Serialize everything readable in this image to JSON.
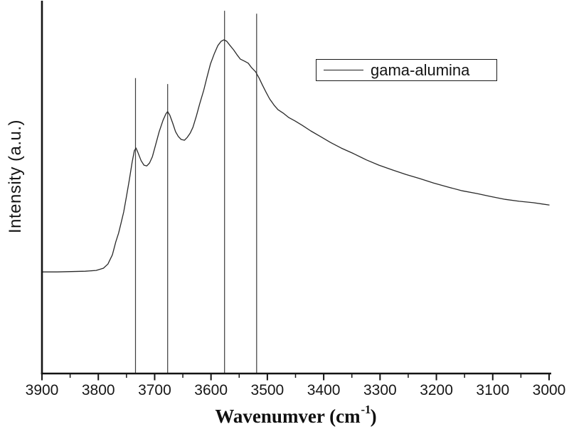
{
  "figure": {
    "background": "#ffffff",
    "ink_color": "#141414",
    "marker_line_color": "#3c3c3c"
  },
  "chart_data": {
    "type": "line",
    "title": "",
    "xlabel": {
      "prefix": "Wavenumver (cm",
      "superscript": "-1",
      "suffix": ")"
    },
    "ylabel": "Intensity (a.u.)",
    "legend": {
      "position": "upper right",
      "entries": [
        "gama-alumina"
      ]
    },
    "x_axis": {
      "left_value": 3900,
      "right_value": 3000,
      "direction": "reversed",
      "major_ticks": [
        3900,
        3800,
        3700,
        3600,
        3500,
        3400,
        3300,
        3200,
        3100,
        3000
      ],
      "major_tick_labels": [
        "3900",
        "3800",
        "3700",
        "3600",
        "3500",
        "3400",
        "3300",
        "3200",
        "3100",
        "3000"
      ],
      "minor_ticks": [
        3850,
        3750,
        3650,
        3550,
        3450,
        3350,
        3250,
        3150,
        3050
      ],
      "grid": false
    },
    "y_axis": {
      "range": [
        0,
        1
      ],
      "ticks": [],
      "tick_labels": [],
      "unit": "a.u.",
      "grid": false
    },
    "peak_markers": [
      {
        "wavenumber": 3734,
        "top_intensity": 0.794
      },
      {
        "wavenumber": 3677,
        "top_intensity": 0.778
      },
      {
        "wavenumber": 3576,
        "top_intensity": 0.975
      },
      {
        "wavenumber": 3519,
        "top_intensity": 0.967
      }
    ],
    "series": [
      {
        "name": "gama-alumina",
        "color": "#2a2a2a",
        "points": [
          [
            3900,
            0.273
          ],
          [
            3873,
            0.273
          ],
          [
            3848,
            0.274
          ],
          [
            3823,
            0.275
          ],
          [
            3804,
            0.277
          ],
          [
            3791,
            0.283
          ],
          [
            3783,
            0.294
          ],
          [
            3775,
            0.319
          ],
          [
            3769,
            0.354
          ],
          [
            3764,
            0.377
          ],
          [
            3760,
            0.402
          ],
          [
            3755,
            0.434
          ],
          [
            3750,
            0.476
          ],
          [
            3745,
            0.52
          ],
          [
            3740,
            0.568
          ],
          [
            3736,
            0.599
          ],
          [
            3733,
            0.606
          ],
          [
            3730,
            0.595
          ],
          [
            3724,
            0.572
          ],
          [
            3719,
            0.56
          ],
          [
            3714,
            0.558
          ],
          [
            3709,
            0.566
          ],
          [
            3704,
            0.583
          ],
          [
            3698,
            0.616
          ],
          [
            3692,
            0.65
          ],
          [
            3685,
            0.681
          ],
          [
            3680,
            0.698
          ],
          [
            3677,
            0.704
          ],
          [
            3673,
            0.694
          ],
          [
            3668,
            0.673
          ],
          [
            3663,
            0.65
          ],
          [
            3658,
            0.637
          ],
          [
            3653,
            0.629
          ],
          [
            3647,
            0.627
          ],
          [
            3642,
            0.635
          ],
          [
            3637,
            0.646
          ],
          [
            3632,
            0.662
          ],
          [
            3626,
            0.692
          ],
          [
            3620,
            0.725
          ],
          [
            3613,
            0.761
          ],
          [
            3607,
            0.797
          ],
          [
            3601,
            0.832
          ],
          [
            3594,
            0.86
          ],
          [
            3588,
            0.881
          ],
          [
            3582,
            0.893
          ],
          [
            3577,
            0.897
          ],
          [
            3572,
            0.893
          ],
          [
            3567,
            0.883
          ],
          [
            3560,
            0.87
          ],
          [
            3554,
            0.857
          ],
          [
            3548,
            0.845
          ],
          [
            3540,
            0.839
          ],
          [
            3534,
            0.834
          ],
          [
            3528,
            0.822
          ],
          [
            3521,
            0.811
          ],
          [
            3515,
            0.795
          ],
          [
            3509,
            0.776
          ],
          [
            3502,
            0.755
          ],
          [
            3496,
            0.738
          ],
          [
            3488,
            0.721
          ],
          [
            3481,
            0.709
          ],
          [
            3472,
            0.7
          ],
          [
            3462,
            0.688
          ],
          [
            3451,
            0.679
          ],
          [
            3438,
            0.667
          ],
          [
            3423,
            0.652
          ],
          [
            3406,
            0.637
          ],
          [
            3388,
            0.621
          ],
          [
            3369,
            0.606
          ],
          [
            3347,
            0.591
          ],
          [
            3324,
            0.574
          ],
          [
            3302,
            0.56
          ],
          [
            3278,
            0.547
          ],
          [
            3254,
            0.535
          ],
          [
            3230,
            0.524
          ],
          [
            3205,
            0.512
          ],
          [
            3179,
            0.501
          ],
          [
            3154,
            0.491
          ],
          [
            3129,
            0.484
          ],
          [
            3104,
            0.476
          ],
          [
            3078,
            0.468
          ],
          [
            3053,
            0.463
          ],
          [
            3028,
            0.459
          ],
          [
            3000,
            0.453
          ]
        ]
      }
    ]
  }
}
